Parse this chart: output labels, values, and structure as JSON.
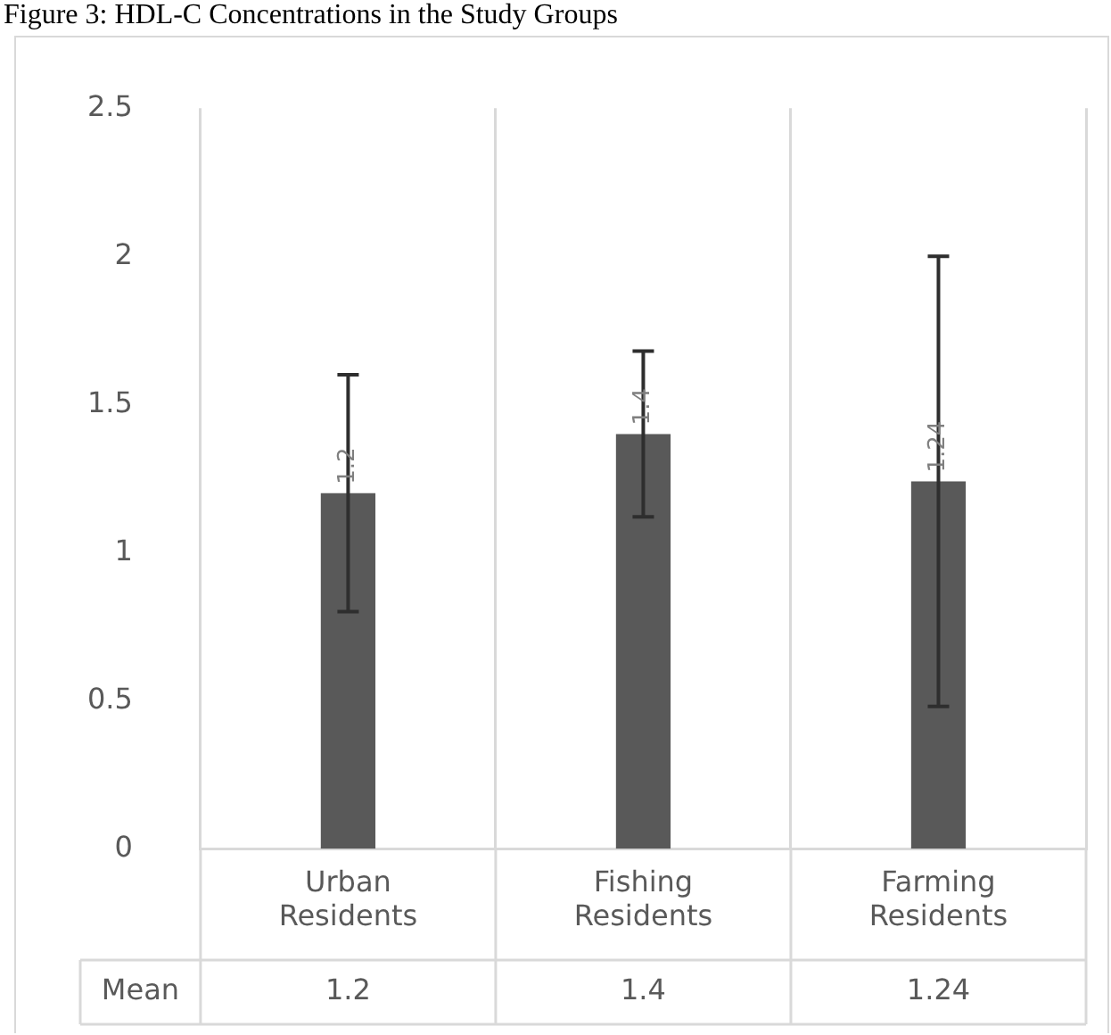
{
  "chart_data": {
    "type": "bar",
    "title": "Figure 3: HDL-C Concentrations in the Study Groups",
    "categories": [
      "Urban Residents",
      "Fishing Residents",
      "Farming Residents"
    ],
    "series": [
      {
        "name": "Mean",
        "color": "#595959",
        "values": [
          1.2,
          1.4,
          1.24
        ],
        "value_labels": [
          "1.2",
          "1.4",
          "1.24"
        ],
        "errors": [
          [
            0.8,
            1.6
          ],
          [
            1.12,
            1.68
          ],
          [
            0.48,
            2.0
          ]
        ]
      }
    ],
    "ylim": [
      0,
      2.5
    ],
    "yticks": [
      0,
      0.5,
      1,
      1.5,
      2,
      2.5
    ],
    "grid": "x",
    "data_labels": true
  }
}
